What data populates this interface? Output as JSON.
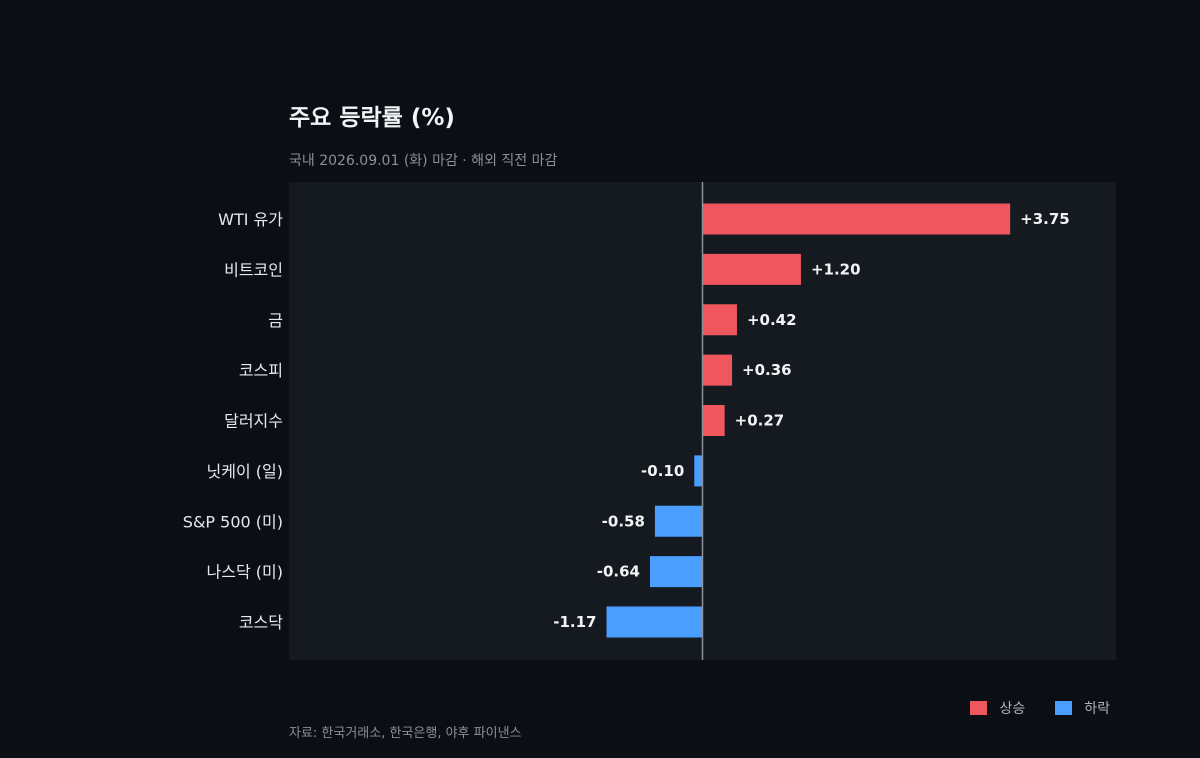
{
  "title": "주요 등락률 (%)",
  "subtitle": "국내 2026.09.01 (화) 마감 · 해외 직전 마감",
  "source": "자료: 한국거래소, 한국은행, 야후 파이낸스",
  "colors": {
    "up": "#f0565e",
    "down": "#4a9eff",
    "plot_bg": "#151a21",
    "zero_line": "#8a8f99"
  },
  "legend": {
    "up_label": "상승",
    "down_label": "하락"
  },
  "chart_data": {
    "type": "bar",
    "orientation": "horizontal",
    "categories": [
      "WTI 유가",
      "비트코인",
      "금",
      "코스피",
      "달러지수",
      "닛케이 (일)",
      "S&P 500 (미)",
      "나스닥 (미)",
      "코스닥"
    ],
    "values": [
      3.75,
      1.2,
      0.42,
      0.36,
      0.27,
      -0.1,
      -0.58,
      -0.64,
      -1.17
    ],
    "labels": [
      "+3.75",
      "+1.20",
      "+0.42",
      "+0.36",
      "+0.27",
      "-0.10",
      "-0.58",
      "-0.64",
      "-1.17"
    ],
    "xlim": [
      -5.04,
      5.04
    ],
    "grid": false,
    "legend_position": "bottom-right"
  }
}
